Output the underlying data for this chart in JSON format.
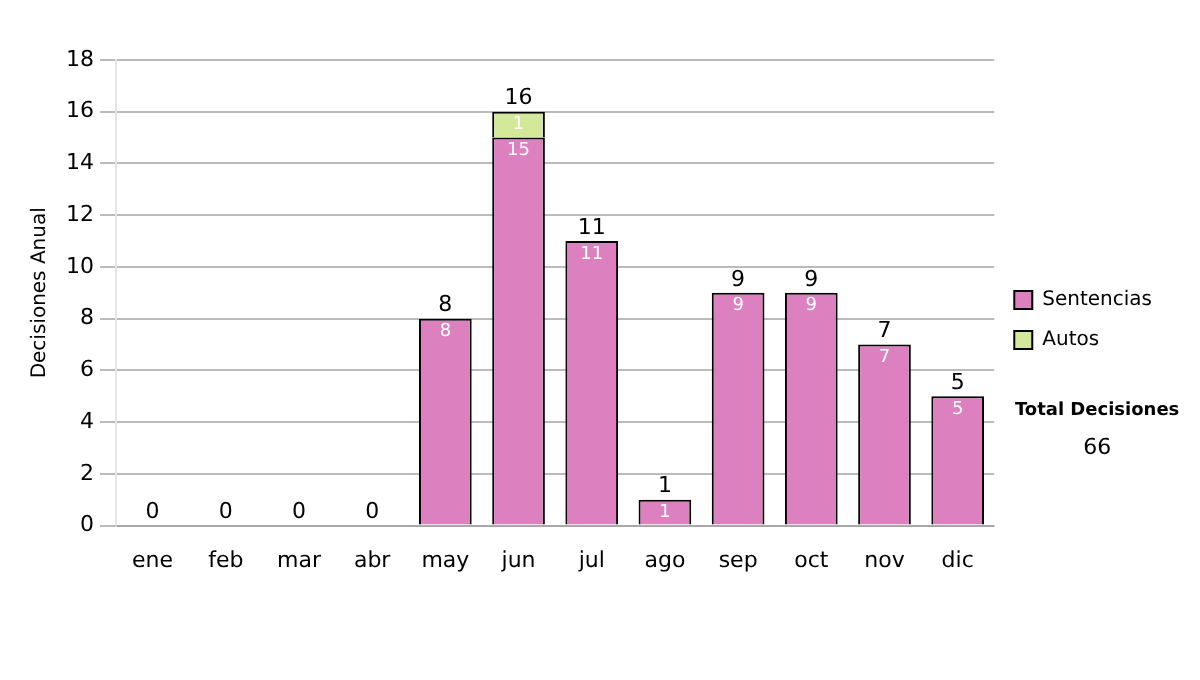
{
  "chart_data": {
    "type": "bar",
    "stacked": true,
    "ylabel": "Decisiones Anual",
    "categories": [
      "ene",
      "feb",
      "mar",
      "abr",
      "may",
      "jun",
      "jul",
      "ago",
      "sep",
      "oct",
      "nov",
      "dic"
    ],
    "series": [
      {
        "name": "Sentencias",
        "color": "#dc80c0",
        "values": [
          0,
          0,
          0,
          0,
          8,
          15,
          11,
          1,
          9,
          9,
          7,
          5
        ],
        "value_labels": [
          null,
          null,
          null,
          null,
          "8",
          "15",
          "11",
          "1",
          "9",
          "9",
          "7",
          "5"
        ]
      },
      {
        "name": "Autos",
        "color": "#d4e89a",
        "values": [
          0,
          0,
          0,
          0,
          0,
          1,
          0,
          0,
          0,
          0,
          0,
          0
        ],
        "value_labels": [
          null,
          null,
          null,
          null,
          null,
          "1",
          null,
          null,
          null,
          null,
          null,
          null
        ]
      }
    ],
    "totals": [
      "0",
      "0",
      "0",
      "0",
      "8",
      "16",
      "11",
      "1",
      "9",
      "9",
      "7",
      "5"
    ],
    "ylim": [
      0,
      18
    ],
    "yticks": [
      0,
      2,
      4,
      6,
      8,
      10,
      12,
      14,
      16,
      18
    ],
    "grid": "y",
    "legend": "right",
    "annotations": [
      "Total Decisiones",
      "66"
    ]
  }
}
